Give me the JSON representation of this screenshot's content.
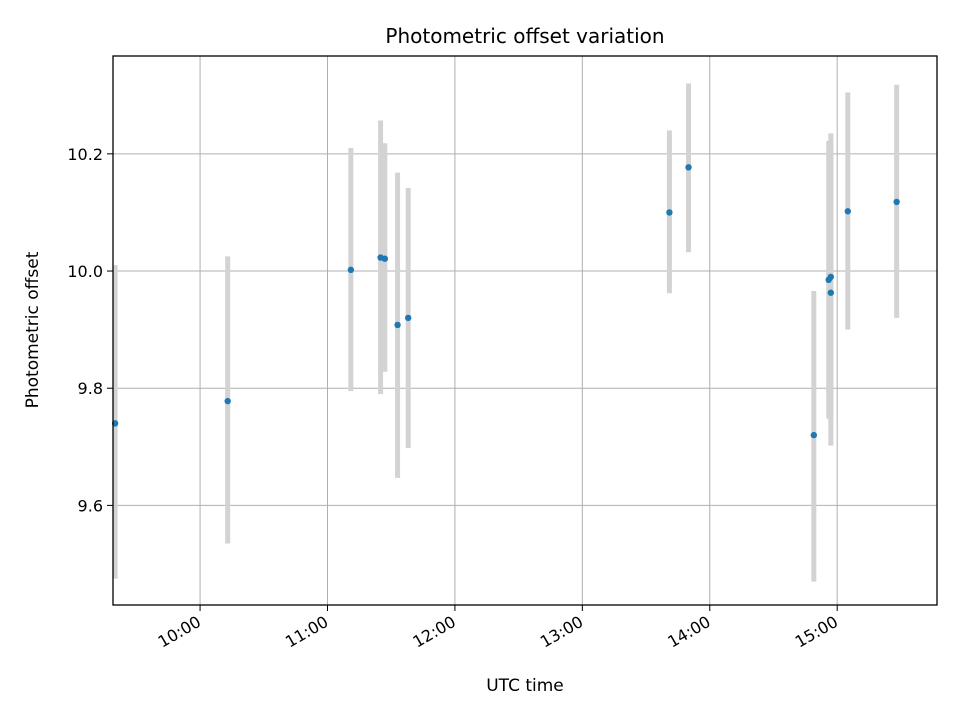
{
  "chart_data": {
    "type": "scatter",
    "title": "Photometric offset variation",
    "xlabel": "UTC time",
    "ylabel": "Photometric offset",
    "x_unit": "UTC hours",
    "xlim": [
      "09:19",
      "15:47"
    ],
    "ylim": [
      9.43,
      10.367
    ],
    "x_ticks": [
      "10:00",
      "11:00",
      "12:00",
      "13:00",
      "14:00",
      "15:00"
    ],
    "y_ticks": [
      "9.6",
      "9.8",
      "10.0",
      "10.2"
    ],
    "grid": true,
    "point_color": "#1f77b4",
    "errorbar_color": "#d3d3d3",
    "points": [
      {
        "time": "09:20",
        "y": 9.74,
        "ylow": 9.475,
        "yhigh": 10.01
      },
      {
        "time": "10:13",
        "y": 9.778,
        "ylow": 9.535,
        "yhigh": 10.025
      },
      {
        "time": "11:11",
        "y": 10.002,
        "ylow": 9.795,
        "yhigh": 10.21
      },
      {
        "time": "11:25",
        "y": 10.023,
        "ylow": 9.79,
        "yhigh": 10.257
      },
      {
        "time": "11:27",
        "y": 10.021,
        "ylow": 9.828,
        "yhigh": 10.218
      },
      {
        "time": "11:33",
        "y": 9.908,
        "ylow": 9.647,
        "yhigh": 10.168
      },
      {
        "time": "11:38",
        "y": 9.92,
        "ylow": 9.698,
        "yhigh": 10.142
      },
      {
        "time": "13:41",
        "y": 10.1,
        "ylow": 9.962,
        "yhigh": 10.24
      },
      {
        "time": "13:50",
        "y": 10.177,
        "ylow": 10.032,
        "yhigh": 10.32
      },
      {
        "time": "14:49",
        "y": 9.72,
        "ylow": 9.47,
        "yhigh": 9.966
      },
      {
        "time": "14:56",
        "y": 9.985,
        "ylow": 9.748,
        "yhigh": 10.222
      },
      {
        "time": "14:57",
        "y": 9.963,
        "ylow": 9.702,
        "yhigh": 10.224
      },
      {
        "time": "14:57",
        "y": 9.99,
        "ylow": 9.745,
        "yhigh": 10.235
      },
      {
        "time": "15:05",
        "y": 10.102,
        "ylow": 9.9,
        "yhigh": 10.305
      },
      {
        "time": "15:28",
        "y": 10.118,
        "ylow": 9.92,
        "yhigh": 10.318
      }
    ]
  }
}
